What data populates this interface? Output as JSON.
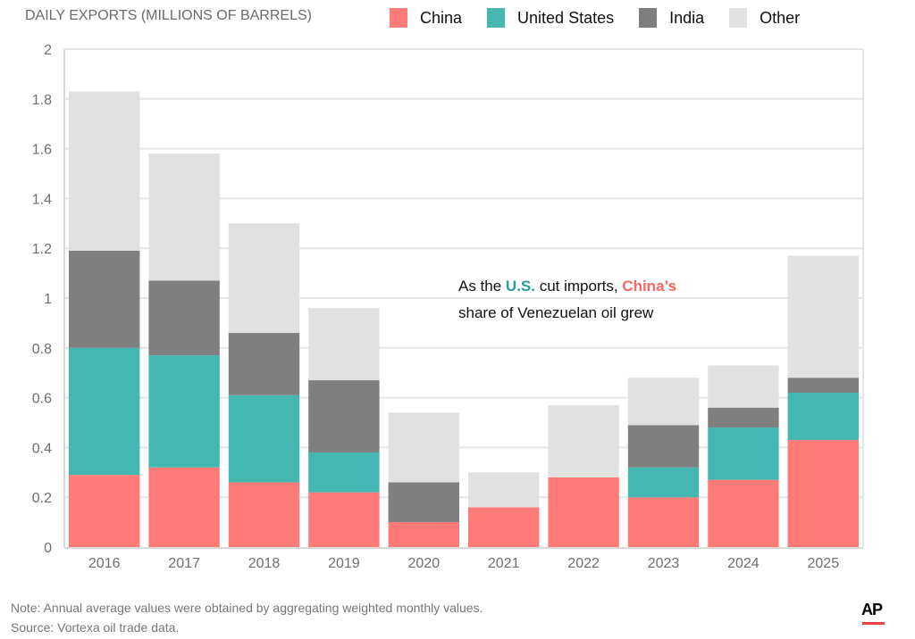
{
  "chart_data": {
    "type": "bar",
    "stacked": true,
    "title": "",
    "ylabel": "DAILY EXPORTS (MILLIONS OF BARRELS)",
    "xlabel": "",
    "ylim": [
      0,
      2
    ],
    "yticks": [
      0,
      0.2,
      0.4,
      0.6,
      0.8,
      1,
      1.2,
      1.4,
      1.6,
      1.8,
      2
    ],
    "ytick_labels": [
      "0",
      "0.2",
      "0.4",
      "0.6",
      "0.8",
      "1",
      "1.2",
      "1.4",
      "1.6",
      "1.8",
      "2"
    ],
    "grid": true,
    "legend_position": "top-right",
    "categories": [
      "2016",
      "2017",
      "2018",
      "2019",
      "2020",
      "2021",
      "2022",
      "2023",
      "2024",
      "2025"
    ],
    "series": [
      {
        "name": "China",
        "color": "#ff7b77",
        "values": [
          0.29,
          0.32,
          0.26,
          0.22,
          0.1,
          0.16,
          0.28,
          0.2,
          0.27,
          0.43
        ]
      },
      {
        "name": "United States",
        "color": "#44b7b3",
        "values": [
          0.51,
          0.45,
          0.35,
          0.16,
          0.0,
          0.0,
          0.0,
          0.12,
          0.21,
          0.19
        ]
      },
      {
        "name": "India",
        "color": "#7f7f7f",
        "values": [
          0.39,
          0.3,
          0.25,
          0.29,
          0.16,
          0.0,
          0.0,
          0.17,
          0.08,
          0.06
        ]
      },
      {
        "name": "Other",
        "color": "#e1e1e1",
        "values": [
          0.64,
          0.51,
          0.44,
          0.29,
          0.28,
          0.14,
          0.29,
          0.19,
          0.17,
          0.49
        ]
      }
    ],
    "annotation": {
      "prefix": "As the ",
      "us_text": "U.S.",
      "middle": " cut imports, ",
      "china_text": "China’s",
      "line2": "share of Venezuelan oil grew"
    }
  },
  "footer": {
    "note": "Note: Annual average values were obtained by aggregating weighted monthly values.",
    "source": "Source: Vortexa oil trade data."
  },
  "logo": {
    "text": "AP",
    "underline_color": "#ef3f3f"
  }
}
